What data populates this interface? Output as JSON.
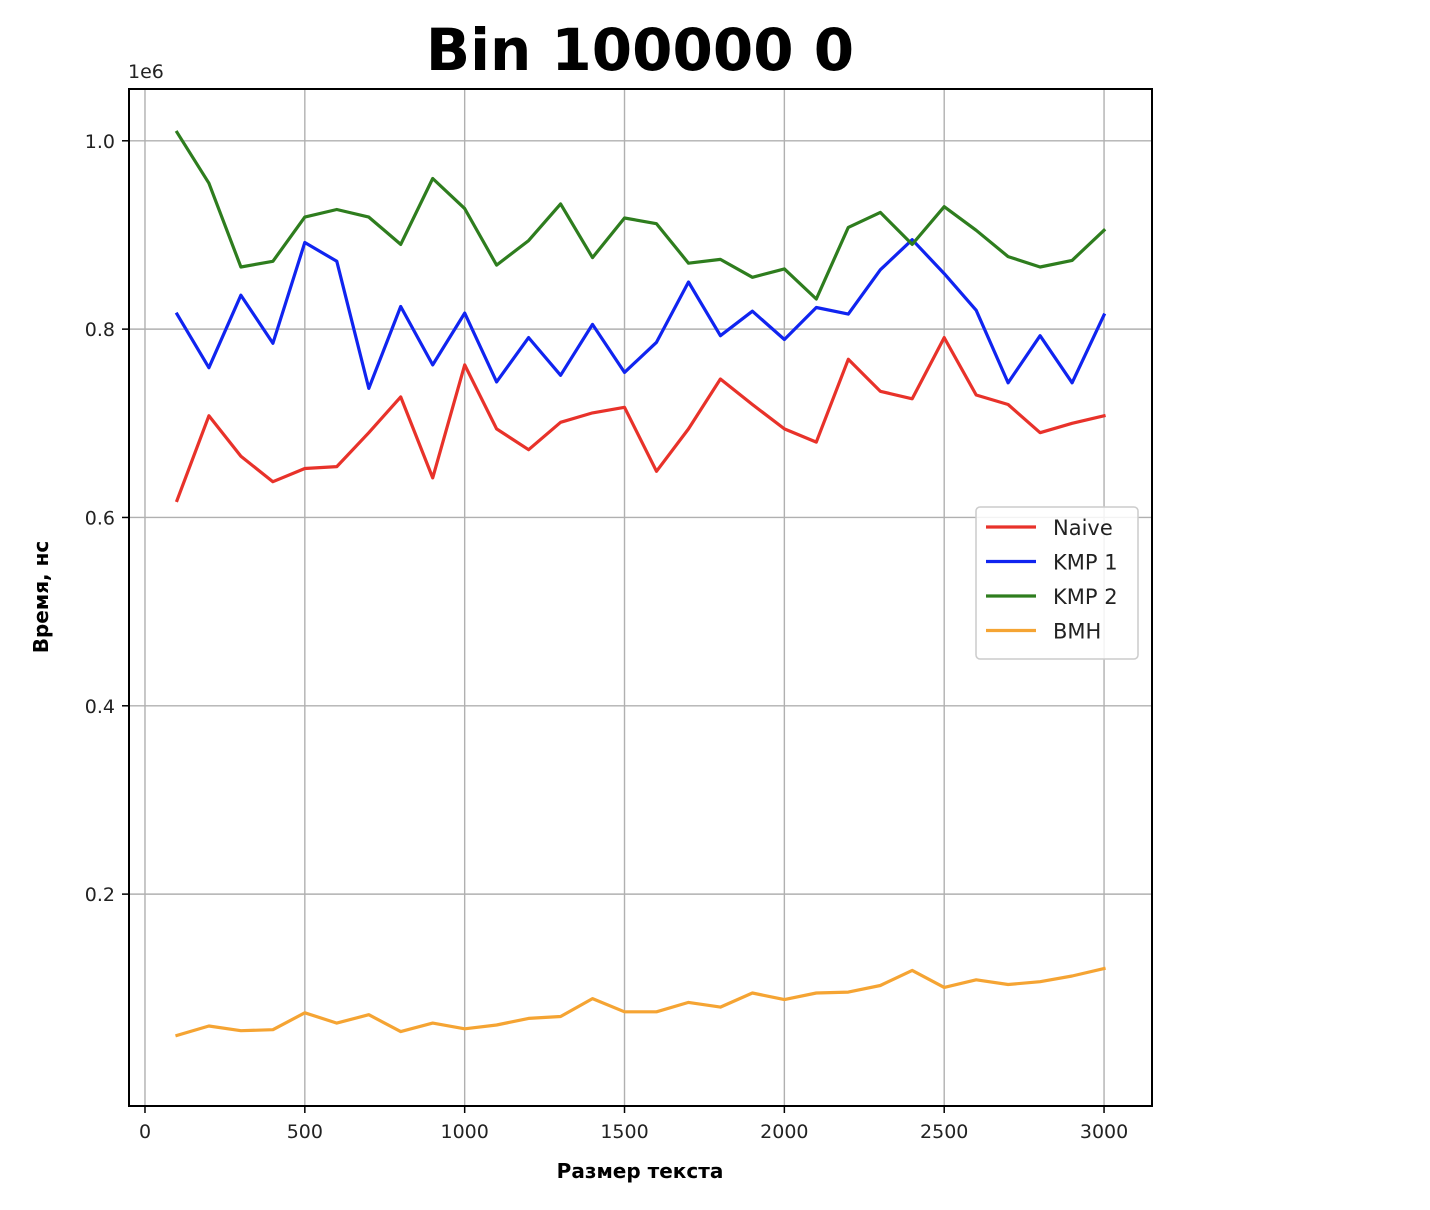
{
  "chart_data": {
    "type": "line",
    "title": "Bin 100000 0",
    "xlabel": "Размер текста",
    "ylabel": "Время, нс",
    "y_offset_label": "1e6",
    "xlim": [
      -50,
      3150
    ],
    "ylim": [
      -25000.0,
      1055000.0
    ],
    "xticks": [
      0,
      500,
      1000,
      1500,
      2000,
      2500,
      3000
    ],
    "xtick_labels": [
      "0",
      "500",
      "1000",
      "1500",
      "2000",
      "2500",
      "3000"
    ],
    "yticks": [
      200000,
      400000,
      600000,
      800000,
      1000000
    ],
    "ytick_labels": [
      "0.2",
      "0.4",
      "0.6",
      "0.8",
      "1.0"
    ],
    "grid": true,
    "legend_position": "center-right",
    "x": [
      100,
      200,
      300,
      400,
      500,
      600,
      700,
      800,
      900,
      1000,
      1100,
      1200,
      1300,
      1400,
      1500,
      1600,
      1700,
      1800,
      1900,
      2000,
      2100,
      2200,
      2300,
      2400,
      2500,
      2600,
      2700,
      2800,
      2900,
      3000
    ],
    "series": [
      {
        "name": "Naive",
        "color": "#e8322a",
        "values": [
          618000,
          708000,
          665000,
          638000,
          652000,
          654000,
          690000,
          728000,
          642000,
          762000,
          694000,
          672000,
          701000,
          711000,
          717000,
          649000,
          694000,
          747000,
          720000,
          694000,
          680000,
          768000,
          734000,
          726000,
          791000,
          730000,
          720000,
          690000,
          700000,
          708000
        ]
      },
      {
        "name": "KMP 1",
        "color": "#1024f0",
        "values": [
          816000,
          759000,
          836000,
          785000,
          892000,
          872000,
          737000,
          824000,
          762000,
          817000,
          744000,
          791000,
          751000,
          805000,
          754000,
          786000,
          850000,
          793000,
          819000,
          789000,
          823000,
          816000,
          863000,
          895000,
          859000,
          820000,
          743000,
          793000,
          743000,
          815000
        ]
      },
      {
        "name": "KMP 2",
        "color": "#2e7d1e",
        "values": [
          1009000,
          955000,
          866000,
          872000,
          919000,
          927000,
          919000,
          890000,
          960000,
          928000,
          868000,
          894000,
          933000,
          876000,
          918000,
          912000,
          870000,
          874000,
          855000,
          864000,
          832000,
          908000,
          924000,
          890000,
          930000,
          905000,
          877000,
          866000,
          873000,
          905000
        ]
      },
      {
        "name": "BMH",
        "color": "#f5a433",
        "values": [
          50000,
          60000,
          55000,
          56000,
          74000,
          63000,
          72000,
          54000,
          63000,
          57000,
          61000,
          68000,
          70000,
          89000,
          75000,
          75000,
          85000,
          80000,
          95000,
          88000,
          95000,
          96000,
          103000,
          119000,
          101000,
          109000,
          104000,
          107000,
          113000,
          121000
        ]
      }
    ]
  }
}
